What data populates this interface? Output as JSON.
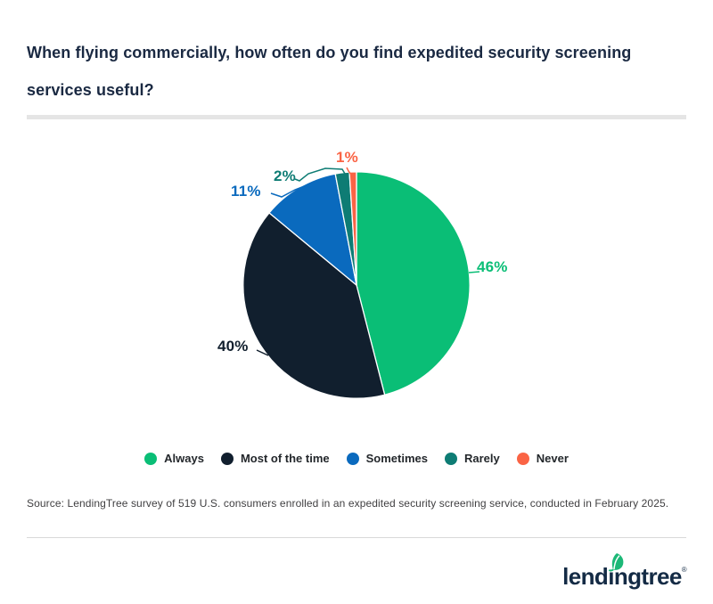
{
  "page": {
    "title_lines": [
      "When flying commercially, how often do you find expedited security screening",
      "services useful?"
    ],
    "source": "Source: LendingTree survey of 519 U.S. consumers enrolled in an expedited security screening service, conducted in February 2025.",
    "footer": {
      "brand": "lendingtree",
      "reg": "®"
    }
  },
  "colors": {
    "title_text": "#1a2942",
    "legend_text": "#23272b",
    "source_text": "#414042",
    "brand_navy": "#142b45",
    "brand_leaf_green": "#1cb877",
    "title_divider": "#e5e5e5",
    "footer_divider": "#d9d9d9",
    "slice_border": "#ffffff"
  },
  "chart_data": {
    "type": "pie",
    "title": "When flying commercially, how often do you find expedited security screening services useful?",
    "categories": [
      "Always",
      "Most of the time",
      "Sometimes",
      "Rarely",
      "Never"
    ],
    "values": [
      46,
      40,
      11,
      2,
      1
    ],
    "unit": "percent",
    "labels": [
      "46%",
      "40%",
      "11%",
      "2%",
      "1%"
    ],
    "colors": [
      "#0abe76",
      "#111f2e",
      "#0a6abe",
      "#0e7c74",
      "#fa6445"
    ],
    "start_angle_deg": 0,
    "direction": "clockwise",
    "legend_position": "bottom"
  }
}
